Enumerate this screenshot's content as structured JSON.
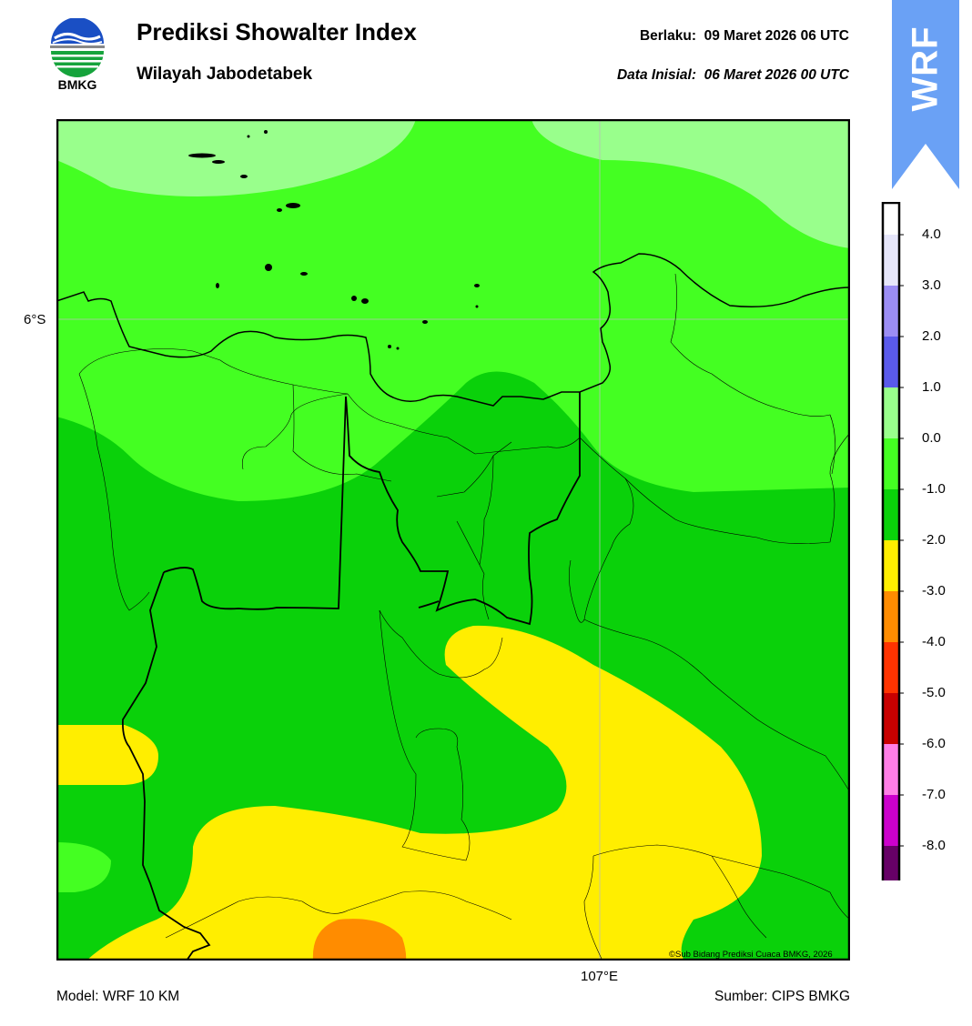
{
  "header": {
    "title": "Prediksi Showalter Index",
    "subtitle": "Wilayah Jabodetabek",
    "valid_label": "Berlaku:",
    "valid_value": "09 Maret 2026 06 UTC",
    "init_label": "Data Inisial:",
    "init_value": "06 Maret 2026 00 UTC"
  },
  "logo": {
    "text": "BMKG",
    "icon": "bmkg-logo-icon"
  },
  "ribbon": {
    "text": "WRF",
    "color": "#6aa1f5"
  },
  "map": {
    "lat_label": "6°S",
    "lon_label": "107°E",
    "credit": "©Sub Bidang Prediksi Cuaca BMKG, 2026"
  },
  "footer": {
    "model": "Model: WRF 10 KM",
    "source": "Sumber: CIPS BMKG"
  },
  "colorbar": {
    "labels": [
      "4.0",
      "3.0",
      "2.0",
      "1.0",
      "0.0",
      "-1.0",
      "-2.0",
      "-3.0",
      "-4.0",
      "-5.0",
      "-6.0",
      "-7.0",
      "-8.0"
    ],
    "colors": [
      "#ffffff",
      "#e6e6fa",
      "#9b8df4",
      "#5a5aeb",
      "#99ff8c",
      "#44ff22",
      "#0ad10a",
      "#ffee00",
      "#ff8c00",
      "#ff3300",
      "#c80000",
      "#ff7ee6",
      "#cc00cc",
      "#660066"
    ]
  }
}
